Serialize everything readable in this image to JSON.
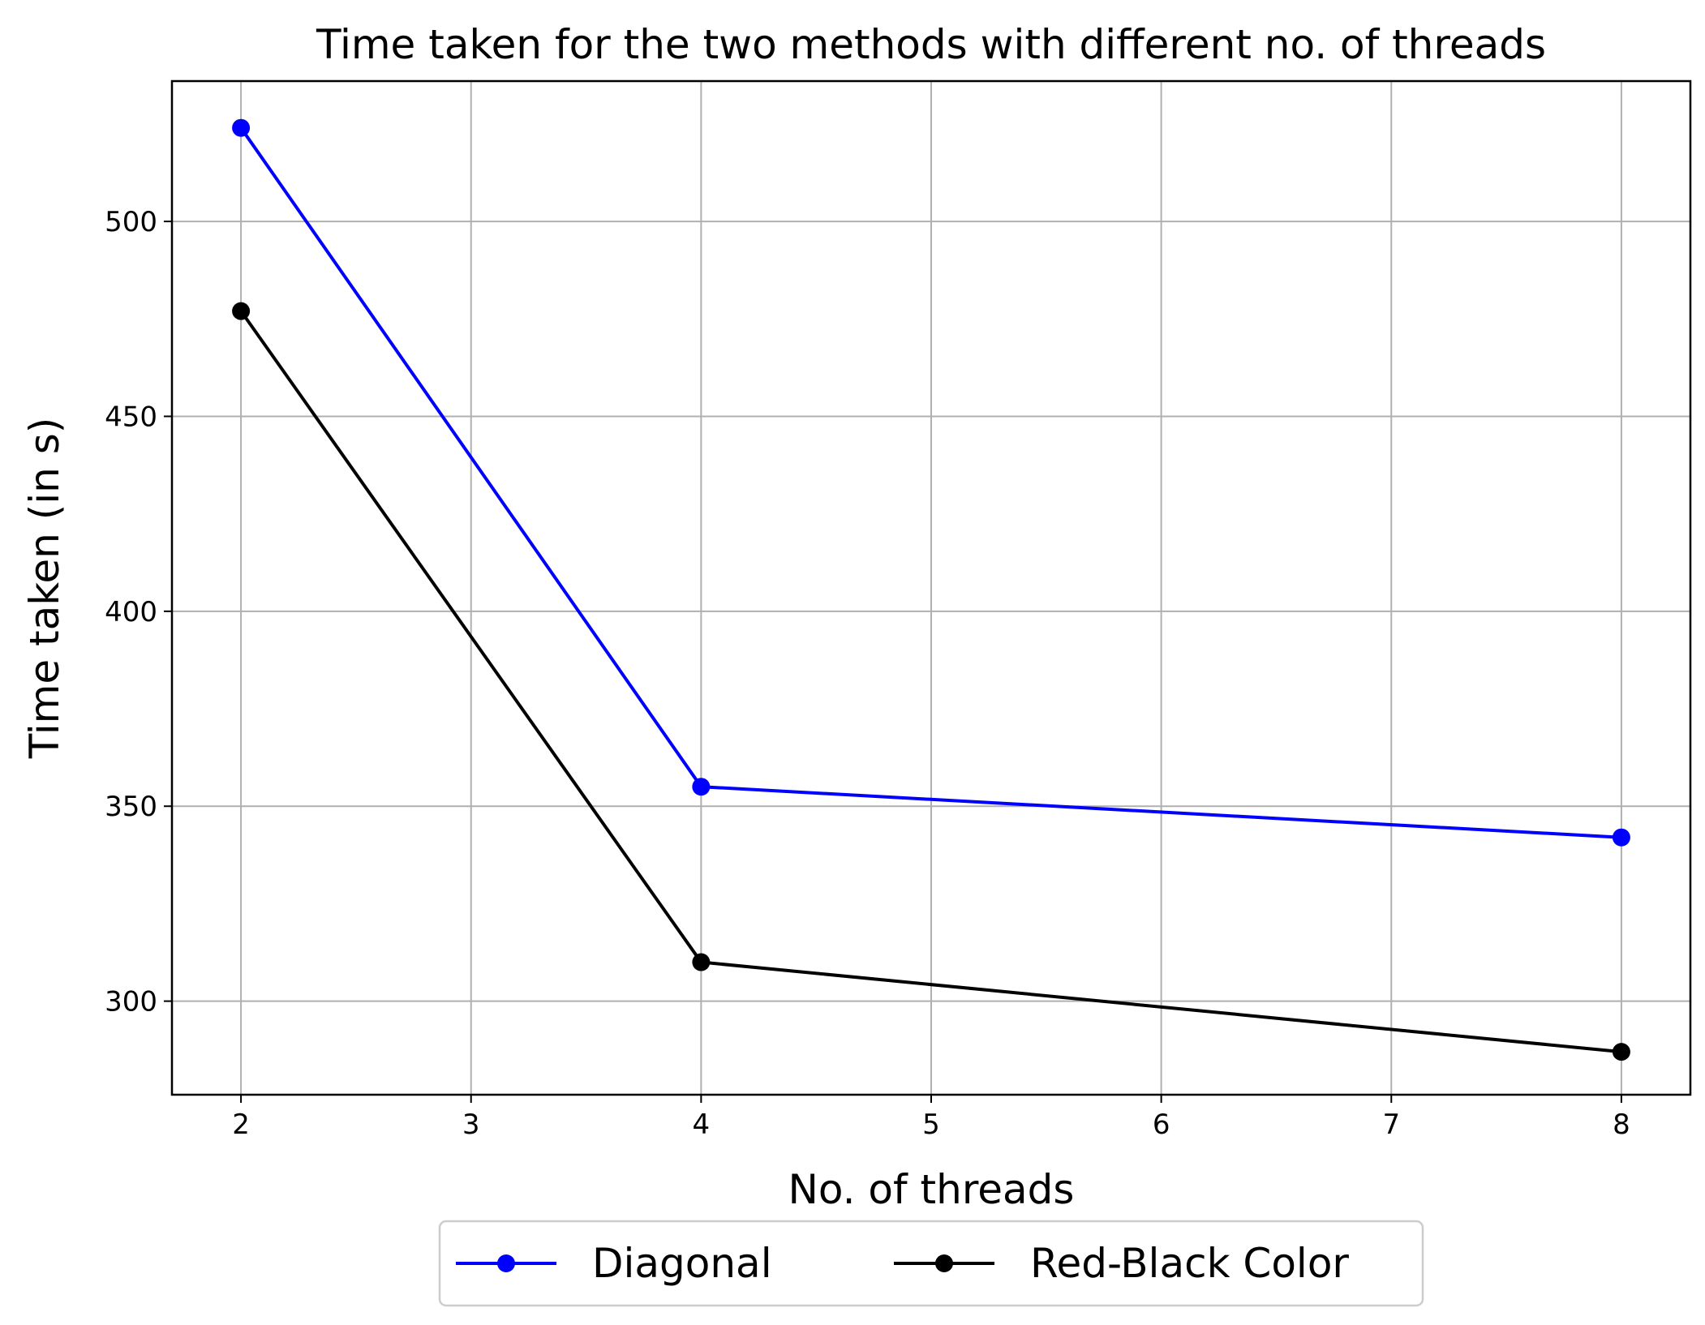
{
  "chart_data": {
    "type": "line",
    "title": "Time taken for the two methods with different no. of threads",
    "xlabel": "No. of threads",
    "ylabel": "Time taken (in s)",
    "xlim": [
      1.7,
      8.3
    ],
    "ylim": [
      276,
      536
    ],
    "xticks": [
      2,
      3,
      4,
      5,
      6,
      7,
      8
    ],
    "yticks": [
      300,
      350,
      400,
      450,
      500
    ],
    "grid": true,
    "legend_position": "bottom-center",
    "x": [
      2,
      4,
      8
    ],
    "series": [
      {
        "name": "Diagonal",
        "color": "#0000ff",
        "marker": "circle",
        "values": [
          524,
          355,
          342
        ]
      },
      {
        "name": "Red-Black Color",
        "color": "#000000",
        "marker": "circle",
        "values": [
          477,
          310,
          287
        ]
      }
    ]
  }
}
